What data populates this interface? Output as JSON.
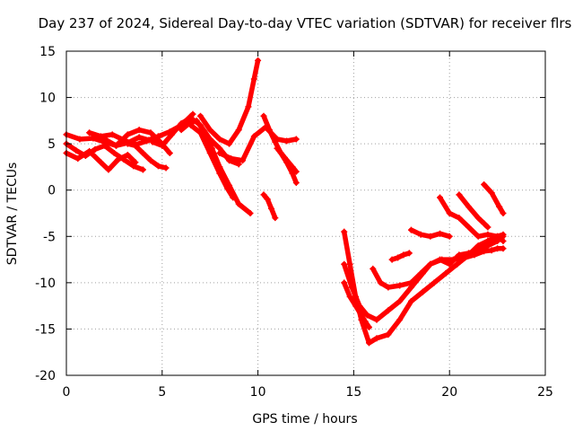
{
  "chart_data": {
    "type": "line",
    "title": "Day 237 of 2024, Sidereal Day-to-day VTEC variation (SDTVAR) for receiver flrs",
    "xlabel": "GPS time / hours",
    "ylabel": "SDTVAR / TECUs",
    "xlim": [
      0,
      25
    ],
    "ylim": [
      -20,
      15
    ],
    "x_ticks": [
      "0",
      "5",
      "10",
      "15",
      "20",
      "25"
    ],
    "y_ticks": [
      "15",
      "10",
      "5",
      "0",
      "-5",
      "-10",
      "-15",
      "-20"
    ],
    "grid": true,
    "marker": "+",
    "color": "#ff0000",
    "series": [
      {
        "x": [
          0.0,
          0.7,
          1.4,
          2.0,
          2.6,
          3.2,
          3.8,
          4.3,
          4.8
        ],
        "y": [
          6.0,
          5.5,
          5.6,
          5.2,
          4.8,
          5.1,
          5.7,
          5.4,
          5.8
        ]
      },
      {
        "x": [
          0.0,
          0.6,
          1.2,
          1.8,
          2.2,
          2.7,
          3.2,
          3.6
        ],
        "y": [
          4.0,
          3.4,
          4.2,
          3.0,
          2.2,
          3.3,
          3.8,
          3.0
        ]
      },
      {
        "x": [
          0.0,
          0.5,
          1.0,
          1.5,
          2.0,
          2.5,
          3.0,
          3.5,
          4.0
        ],
        "y": [
          5.0,
          4.3,
          3.7,
          4.4,
          4.8,
          4.0,
          3.3,
          2.6,
          2.2
        ]
      },
      {
        "x": [
          1.2,
          1.8,
          2.4,
          3.0,
          3.6,
          4.2,
          4.8,
          5.4,
          6.0,
          6.6
        ],
        "y": [
          6.2,
          5.8,
          6.0,
          5.4,
          4.9,
          5.3,
          5.8,
          6.3,
          7.0,
          8.2
        ]
      },
      {
        "x": [
          2.0,
          2.6,
          3.2,
          3.8,
          4.4,
          4.9,
          5.4
        ],
        "y": [
          5.5,
          4.8,
          6.0,
          6.5,
          6.2,
          5.2,
          4.0
        ]
      },
      {
        "x": [
          3.2,
          3.6,
          4.0,
          4.4,
          4.8,
          5.2
        ],
        "y": [
          5.0,
          4.8,
          4.0,
          3.2,
          2.6,
          2.4
        ]
      },
      {
        "x": [
          4.5,
          5.0,
          5.5,
          6.0,
          6.5,
          7.0,
          7.5,
          8.0,
          8.5,
          9.0
        ],
        "y": [
          5.2,
          4.8,
          6.0,
          7.2,
          7.8,
          7.0,
          5.5,
          4.5,
          3.2,
          2.8
        ]
      },
      {
        "x": [
          6.0,
          6.4,
          6.8,
          7.2,
          7.6,
          8.0,
          8.5,
          9.0,
          9.6
        ],
        "y": [
          6.5,
          7.2,
          7.5,
          6.3,
          4.5,
          2.5,
          0.5,
          -1.5,
          -2.5
        ]
      },
      {
        "x": [
          6.5,
          7.0,
          7.5,
          8.0,
          8.4,
          8.7
        ],
        "y": [
          7.0,
          6.2,
          4.0,
          1.8,
          0.2,
          -0.8
        ]
      },
      {
        "x": [
          7.0,
          7.5,
          8.0,
          8.5,
          9.0,
          9.5,
          9.8,
          10.0
        ],
        "y": [
          8.0,
          6.5,
          5.5,
          5.0,
          6.5,
          9.0,
          12.0,
          14.0
        ]
      },
      {
        "x": [
          8.0,
          8.6,
          9.2,
          9.8,
          10.4,
          11.0,
          11.5,
          12.0
        ],
        "y": [
          4.0,
          3.4,
          3.2,
          5.8,
          6.8,
          5.5,
          5.3,
          5.5
        ]
      },
      {
        "x": [
          10.3,
          10.6,
          10.9,
          11.2,
          11.5,
          11.8,
          12.0
        ],
        "y": [
          8.0,
          6.5,
          5.2,
          4.0,
          3.0,
          1.8,
          0.8
        ]
      },
      {
        "x": [
          11.0,
          11.4,
          11.8,
          12.0
        ],
        "y": [
          4.5,
          3.5,
          2.5,
          2.0
        ]
      },
      {
        "x": [
          10.3,
          10.5,
          10.7,
          10.9
        ],
        "y": [
          -0.5,
          -1.0,
          -2.0,
          -3.0
        ]
      },
      {
        "x": [
          14.5,
          14.8,
          15.1,
          15.4,
          15.8,
          16.2,
          16.8,
          17.4,
          18.0,
          18.6,
          19.2,
          19.8,
          20.4,
          21.0,
          21.5,
          22.0,
          22.5,
          22.8
        ],
        "y": [
          -4.5,
          -8.0,
          -11.5,
          -14.0,
          -16.5,
          -16.0,
          -15.6,
          -14.0,
          -12.0,
          -11.0,
          -10.0,
          -9.0,
          -8.0,
          -7.0,
          -6.0,
          -5.5,
          -5.0,
          -4.8
        ]
      },
      {
        "x": [
          14.5,
          14.9,
          15.3,
          15.7,
          16.2,
          16.8,
          17.4,
          18.0,
          18.6,
          19.0,
          19.5,
          20.0,
          20.5,
          21.0,
          21.5,
          22.0,
          22.5,
          22.8
        ],
        "y": [
          -8.0,
          -10.5,
          -12.5,
          -13.5,
          -14.0,
          -13.0,
          -12.0,
          -10.5,
          -9.0,
          -8.0,
          -7.5,
          -8.0,
          -7.0,
          -6.8,
          -6.5,
          -6.0,
          -5.5,
          -5.0
        ]
      },
      {
        "x": [
          14.5,
          14.8,
          15.1,
          15.4,
          15.6,
          15.8
        ],
        "y": [
          -10.0,
          -11.5,
          -12.5,
          -13.5,
          -14.2,
          -14.8
        ]
      },
      {
        "x": [
          16.0,
          16.4,
          16.8,
          17.4,
          18.0,
          18.5,
          19.0,
          19.6,
          20.2,
          20.8,
          21.3,
          21.8,
          22.2,
          22.5,
          22.8
        ],
        "y": [
          -8.5,
          -10.0,
          -10.5,
          -10.3,
          -10.0,
          -9.0,
          -8.0,
          -7.5,
          -7.5,
          -7.3,
          -7.0,
          -6.6,
          -6.5,
          -6.3,
          -6.3
        ]
      },
      {
        "x": [
          17.0,
          17.3,
          17.6,
          17.9
        ],
        "y": [
          -7.5,
          -7.3,
          -7.0,
          -6.8
        ]
      },
      {
        "x": [
          18.0,
          18.5,
          19.0,
          19.5,
          20.0
        ],
        "y": [
          -4.3,
          -4.8,
          -5.0,
          -4.7,
          -5.0
        ]
      },
      {
        "x": [
          19.5,
          20.0,
          20.5,
          21.0,
          21.5,
          22.0,
          22.5,
          22.8
        ],
        "y": [
          -0.8,
          -2.5,
          -3.0,
          -4.0,
          -5.0,
          -4.8,
          -5.0,
          -5.5
        ]
      },
      {
        "x": [
          20.5,
          21.0,
          21.5,
          21.8,
          22.0
        ],
        "y": [
          -0.5,
          -1.8,
          -3.0,
          -3.6,
          -4.0
        ]
      },
      {
        "x": [
          21.8,
          22.2,
          22.6,
          22.8
        ],
        "y": [
          0.6,
          -0.3,
          -1.8,
          -2.5
        ]
      }
    ]
  }
}
